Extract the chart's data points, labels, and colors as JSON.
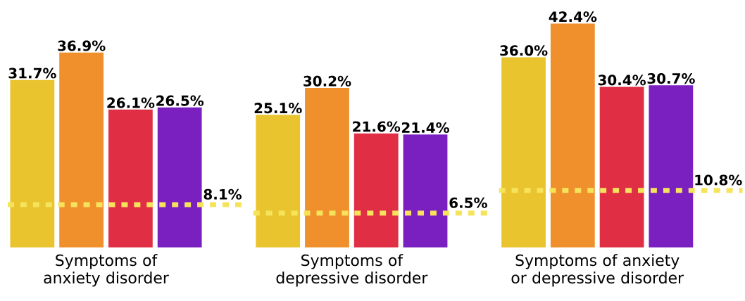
{
  "chart_data": [
    {
      "type": "bar",
      "xlabel": "Symptoms of anxiety disorder",
      "categories": [
        null,
        null,
        null,
        null
      ],
      "values": [
        31.7,
        36.9,
        26.1,
        26.5
      ],
      "colors": [
        "#e9c42e",
        "#f0902c",
        "#e02f45",
        "#7a1fc0"
      ],
      "value_labels": [
        "31.7%",
        "36.9%",
        "26.1%",
        "26.5%"
      ],
      "tick_labels": false,
      "ref_lines": [
        {
          "axis": "y",
          "value": 8.1,
          "label": "8.1%",
          "color": "#f6e35c",
          "line_style": "dashed"
        }
      ]
    },
    {
      "type": "bar",
      "xlabel": "Symptoms of depressive disorder",
      "categories": [
        null,
        null,
        null,
        null
      ],
      "values": [
        25.1,
        30.2,
        21.6,
        21.4
      ],
      "colors": [
        "#e9c42e",
        "#f0902c",
        "#e02f45",
        "#7a1fc0"
      ],
      "value_labels": [
        "25.1%",
        "30.2%",
        "21.6%",
        "21.4%"
      ],
      "tick_labels": false,
      "ref_lines": [
        {
          "axis": "y",
          "value": 6.5,
          "label": "6.5%",
          "color": "#f6e35c",
          "line_style": "dashed"
        }
      ]
    },
    {
      "type": "bar",
      "xlabel": "Symptoms of anxiety or depressive disorder",
      "categories": [
        null,
        null,
        null,
        null
      ],
      "values": [
        36.0,
        42.4,
        30.4,
        30.7
      ],
      "colors": [
        "#e9c42e",
        "#f0902c",
        "#e02f45",
        "#7a1fc0"
      ],
      "value_labels": [
        "36.0%",
        "42.4%",
        "30.4%",
        "30.7%"
      ],
      "tick_labels": false,
      "ref_lines": [
        {
          "axis": "y",
          "value": 10.8,
          "label": "10.8%",
          "color": "#f6e35c",
          "line_style": "dashed"
        }
      ]
    }
  ]
}
